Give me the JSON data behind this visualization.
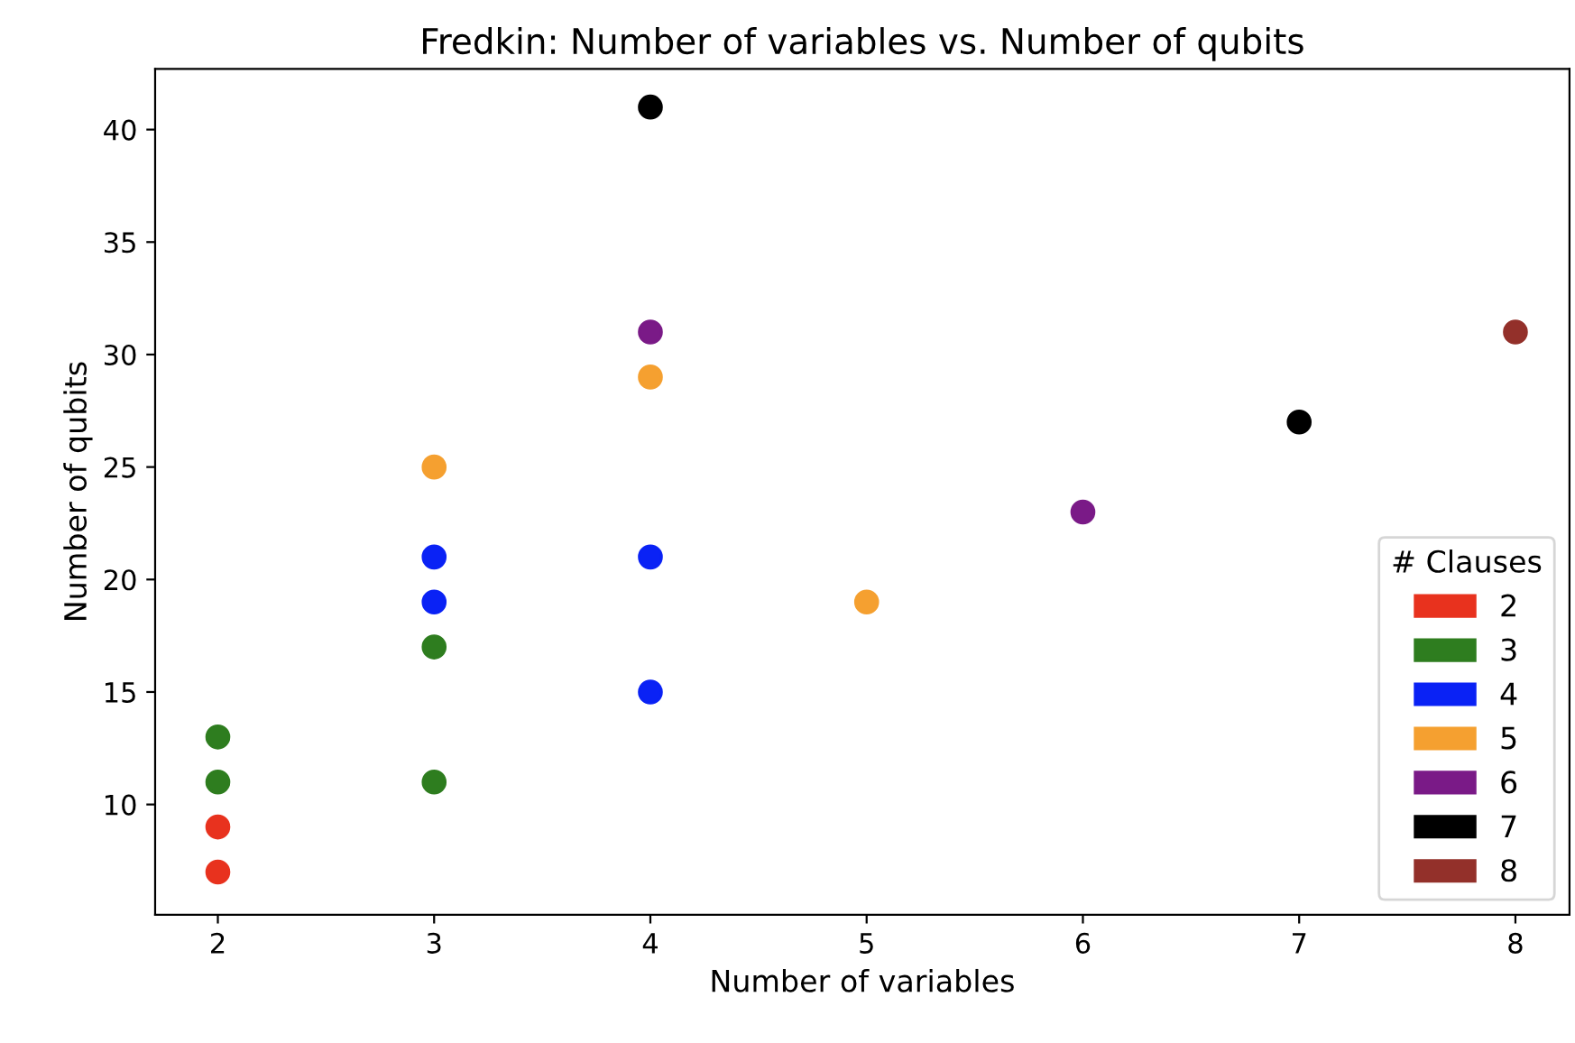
{
  "chart_data": {
    "type": "scatter",
    "title": "Fredkin: Number of variables vs. Number of qubits",
    "xlabel": "Number of variables",
    "ylabel": "Number of qubits",
    "legend_title": "# Clauses",
    "xlim": [
      1.71,
      8.25
    ],
    "ylim": [
      5.1,
      42.7
    ],
    "xticks": [
      2,
      3,
      4,
      5,
      6,
      7,
      8
    ],
    "yticks": [
      10,
      15,
      20,
      25,
      30,
      35,
      40
    ],
    "grid": false,
    "legend": "bottom right",
    "marker": "circle",
    "series": [
      {
        "name": "2",
        "color": "#e8321e",
        "x": [
          2,
          2
        ],
        "values": [
          7,
          9
        ]
      },
      {
        "name": "3",
        "color": "#2e7d1f",
        "x": [
          2,
          2,
          3,
          3
        ],
        "values": [
          11,
          13,
          11,
          17
        ]
      },
      {
        "name": "4",
        "color": "#0a22f5",
        "x": [
          3,
          3,
          4,
          4
        ],
        "values": [
          19,
          21,
          15,
          21
        ]
      },
      {
        "name": "5",
        "color": "#f5a030",
        "x": [
          3,
          4,
          5
        ],
        "values": [
          25,
          29,
          19
        ]
      },
      {
        "name": "6",
        "color": "#7a1a87",
        "x": [
          4,
          6
        ],
        "values": [
          31,
          23
        ]
      },
      {
        "name": "7",
        "color": "#000000",
        "x": [
          4,
          7
        ],
        "values": [
          41,
          27
        ]
      },
      {
        "name": "8",
        "color": "#93302a",
        "x": [
          8
        ],
        "values": [
          31
        ]
      }
    ]
  }
}
